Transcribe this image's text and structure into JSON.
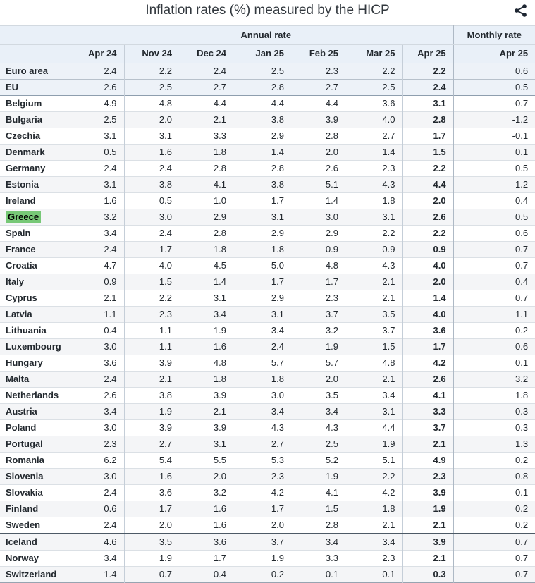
{
  "title": "Inflation rates (%) measured by the HICP",
  "icons": {
    "share": "share-icon"
  },
  "colors": {
    "header_bg": "#e9f0f8",
    "aggregate_row_bg": "#edf2f8",
    "striped_row_bg": "#f4f5f7",
    "highlight_green": "#77c877",
    "section_divider": "#4d5a66",
    "icon_color": "#1e2632"
  },
  "chart_data": {
    "type": "table",
    "title": "Inflation rates (%) measured by the HICP",
    "group_headers": [
      {
        "label": "",
        "span": 1
      },
      {
        "label": "Annual rate",
        "span": 7
      },
      {
        "label": "Monthly rate",
        "span": 1
      }
    ],
    "column_headers": [
      "",
      "Apr 24",
      "Nov 24",
      "Dec 24",
      "Jan 25",
      "Feb 25",
      "Mar 25",
      "Apr 25",
      "Apr 25"
    ],
    "bold_column": "Apr 25",
    "highlighted_row": "Greece",
    "rows": [
      {
        "country": "Euro area",
        "section": "aggregate",
        "values": [
          "2.4",
          "2.2",
          "2.4",
          "2.5",
          "2.3",
          "2.2",
          "2.2",
          "0.6"
        ]
      },
      {
        "country": "EU",
        "section": "aggregate",
        "values": [
          "2.6",
          "2.5",
          "2.7",
          "2.8",
          "2.7",
          "2.5",
          "2.4",
          "0.5"
        ]
      },
      {
        "country": "Belgium",
        "section": "eu",
        "values": [
          "4.9",
          "4.8",
          "4.4",
          "4.4",
          "4.4",
          "3.6",
          "3.1",
          "-0.7"
        ]
      },
      {
        "country": "Bulgaria",
        "section": "eu",
        "values": [
          "2.5",
          "2.0",
          "2.1",
          "3.8",
          "3.9",
          "4.0",
          "2.8",
          "-1.2"
        ]
      },
      {
        "country": "Czechia",
        "section": "eu",
        "values": [
          "3.1",
          "3.1",
          "3.3",
          "2.9",
          "2.8",
          "2.7",
          "1.7",
          "-0.1"
        ]
      },
      {
        "country": "Denmark",
        "section": "eu",
        "values": [
          "0.5",
          "1.6",
          "1.8",
          "1.4",
          "2.0",
          "1.4",
          "1.5",
          "0.1"
        ]
      },
      {
        "country": "Germany",
        "section": "eu",
        "values": [
          "2.4",
          "2.4",
          "2.8",
          "2.8",
          "2.6",
          "2.3",
          "2.2",
          "0.5"
        ]
      },
      {
        "country": "Estonia",
        "section": "eu",
        "values": [
          "3.1",
          "3.8",
          "4.1",
          "3.8",
          "5.1",
          "4.3",
          "4.4",
          "1.2"
        ]
      },
      {
        "country": "Ireland",
        "section": "eu",
        "values": [
          "1.6",
          "0.5",
          "1.0",
          "1.7",
          "1.4",
          "1.8",
          "2.0",
          "0.4"
        ]
      },
      {
        "country": "Greece",
        "section": "eu",
        "values": [
          "3.2",
          "3.0",
          "2.9",
          "3.1",
          "3.0",
          "3.1",
          "2.6",
          "0.5"
        ]
      },
      {
        "country": "Spain",
        "section": "eu",
        "values": [
          "3.4",
          "2.4",
          "2.8",
          "2.9",
          "2.9",
          "2.2",
          "2.2",
          "0.6"
        ]
      },
      {
        "country": "France",
        "section": "eu",
        "values": [
          "2.4",
          "1.7",
          "1.8",
          "1.8",
          "0.9",
          "0.9",
          "0.9",
          "0.7"
        ]
      },
      {
        "country": "Croatia",
        "section": "eu",
        "values": [
          "4.7",
          "4.0",
          "4.5",
          "5.0",
          "4.8",
          "4.3",
          "4.0",
          "0.7"
        ]
      },
      {
        "country": "Italy",
        "section": "eu",
        "values": [
          "0.9",
          "1.5",
          "1.4",
          "1.7",
          "1.7",
          "2.1",
          "2.0",
          "0.4"
        ]
      },
      {
        "country": "Cyprus",
        "section": "eu",
        "values": [
          "2.1",
          "2.2",
          "3.1",
          "2.9",
          "2.3",
          "2.1",
          "1.4",
          "0.7"
        ]
      },
      {
        "country": "Latvia",
        "section": "eu",
        "values": [
          "1.1",
          "2.3",
          "3.4",
          "3.1",
          "3.7",
          "3.5",
          "4.0",
          "1.1"
        ]
      },
      {
        "country": "Lithuania",
        "section": "eu",
        "values": [
          "0.4",
          "1.1",
          "1.9",
          "3.4",
          "3.2",
          "3.7",
          "3.6",
          "0.2"
        ]
      },
      {
        "country": "Luxembourg",
        "section": "eu",
        "values": [
          "3.0",
          "1.1",
          "1.6",
          "2.4",
          "1.9",
          "1.5",
          "1.7",
          "0.6"
        ]
      },
      {
        "country": "Hungary",
        "section": "eu",
        "values": [
          "3.6",
          "3.9",
          "4.8",
          "5.7",
          "5.7",
          "4.8",
          "4.2",
          "0.1"
        ]
      },
      {
        "country": "Malta",
        "section": "eu",
        "values": [
          "2.4",
          "2.1",
          "1.8",
          "1.8",
          "2.0",
          "2.1",
          "2.6",
          "3.2"
        ]
      },
      {
        "country": "Netherlands",
        "section": "eu",
        "values": [
          "2.6",
          "3.8",
          "3.9",
          "3.0",
          "3.5",
          "3.4",
          "4.1",
          "1.8"
        ]
      },
      {
        "country": "Austria",
        "section": "eu",
        "values": [
          "3.4",
          "1.9",
          "2.1",
          "3.4",
          "3.4",
          "3.1",
          "3.3",
          "0.3"
        ]
      },
      {
        "country": "Poland",
        "section": "eu",
        "values": [
          "3.0",
          "3.9",
          "3.9",
          "4.3",
          "4.3",
          "4.4",
          "3.7",
          "0.3"
        ]
      },
      {
        "country": "Portugal",
        "section": "eu",
        "values": [
          "2.3",
          "2.7",
          "3.1",
          "2.7",
          "2.5",
          "1.9",
          "2.1",
          "1.3"
        ]
      },
      {
        "country": "Romania",
        "section": "eu",
        "values": [
          "6.2",
          "5.4",
          "5.5",
          "5.3",
          "5.2",
          "5.1",
          "4.9",
          "0.2"
        ]
      },
      {
        "country": "Slovenia",
        "section": "eu",
        "values": [
          "3.0",
          "1.6",
          "2.0",
          "2.3",
          "1.9",
          "2.2",
          "2.3",
          "0.8"
        ]
      },
      {
        "country": "Slovakia",
        "section": "eu",
        "values": [
          "2.4",
          "3.6",
          "3.2",
          "4.2",
          "4.1",
          "4.2",
          "3.9",
          "0.1"
        ]
      },
      {
        "country": "Finland",
        "section": "eu",
        "values": [
          "0.6",
          "1.7",
          "1.6",
          "1.7",
          "1.5",
          "1.8",
          "1.9",
          "0.2"
        ]
      },
      {
        "country": "Sweden",
        "section": "eu",
        "values": [
          "2.4",
          "2.0",
          "1.6",
          "2.0",
          "2.8",
          "2.1",
          "2.1",
          "0.2"
        ]
      },
      {
        "country": "Iceland",
        "section": "efta",
        "values": [
          "4.6",
          "3.5",
          "3.6",
          "3.7",
          "3.4",
          "3.4",
          "3.9",
          "0.7"
        ]
      },
      {
        "country": "Norway",
        "section": "efta",
        "values": [
          "3.4",
          "1.9",
          "1.7",
          "1.9",
          "3.3",
          "2.3",
          "2.1",
          "0.7"
        ]
      },
      {
        "country": "Switzerland",
        "section": "efta",
        "values": [
          "1.4",
          "0.7",
          "0.4",
          "0.2",
          "0.1",
          "0.1",
          "0.3",
          "0.7"
        ]
      }
    ]
  }
}
